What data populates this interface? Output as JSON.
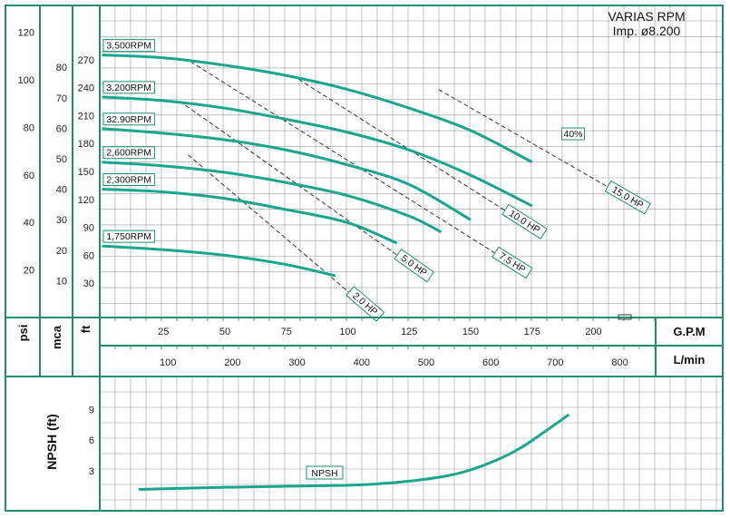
{
  "header": {
    "line1": "VARIAS RPM",
    "line2": "Imp. ø8.200"
  },
  "axes": {
    "psi_title": "psi",
    "mca_title": "mca",
    "ft_title": "ft",
    "gpm_title": "G.P.M",
    "lmin_title": "L/min",
    "npsh_title": "NPSH (ft)",
    "psi_ticks": [
      "20",
      "40",
      "60",
      "80",
      "100",
      "120"
    ],
    "mca_ticks": [
      "10",
      "20",
      "30",
      "40",
      "50",
      "60",
      "70",
      "80"
    ],
    "ft_ticks": [
      "30",
      "60",
      "90",
      "120",
      "150",
      "180",
      "210",
      "240",
      "270"
    ],
    "gpm_ticks": [
      "25",
      "50",
      "75",
      "100",
      "125",
      "150",
      "175",
      "200"
    ],
    "lmin_ticks": [
      "100",
      "200",
      "300",
      "400",
      "500",
      "600",
      "700",
      "800"
    ],
    "npsh_ticks": [
      "3",
      "6",
      "9"
    ]
  },
  "colors": {
    "curve": "#1aa58d",
    "frame": "#1d8f6f",
    "grid": "#9a9a9a",
    "power": "#333333"
  },
  "chart_data": [
    {
      "type": "line",
      "name": "head-capacity",
      "xlabel": "G.P.M",
      "ylabel": "ft",
      "xlim": [
        0,
        250
      ],
      "ylim": [
        0,
        300
      ],
      "series": [
        {
          "name": "3,500RPM",
          "x": [
            0,
            25,
            50,
            75,
            100,
            125,
            150,
            175
          ],
          "y": [
            275,
            272,
            264,
            253,
            238,
            218,
            194,
            160
          ]
        },
        {
          "name": "3,200RPM",
          "x": [
            0,
            25,
            50,
            75,
            100,
            125,
            150,
            175
          ],
          "y": [
            230,
            226,
            218,
            206,
            192,
            173,
            146,
            113
          ]
        },
        {
          "name": "32.90RPM",
          "x": [
            0,
            25,
            50,
            75,
            100,
            125,
            150
          ],
          "y": [
            196,
            191,
            184,
            173,
            157,
            136,
            98
          ]
        },
        {
          "name": "2,600RPM",
          "x": [
            0,
            25,
            50,
            75,
            100,
            125,
            138
          ],
          "y": [
            160,
            156,
            149,
            138,
            124,
            102,
            85
          ]
        },
        {
          "name": "2,300RPM",
          "x": [
            0,
            25,
            50,
            75,
            100,
            120
          ],
          "y": [
            131,
            128,
            121,
            109,
            95,
            73
          ]
        },
        {
          "name": "1,750RPM",
          "x": [
            0,
            25,
            50,
            75,
            95
          ],
          "y": [
            70,
            66,
            60,
            50,
            38
          ]
        }
      ],
      "power_lines": [
        {
          "label": "2.0 HP",
          "x": [
            35,
            105
          ],
          "y": [
            168,
            10
          ]
        },
        {
          "label": "5.0 HP",
          "x": [
            34,
            125
          ],
          "y": [
            221,
            51
          ]
        },
        {
          "label": "7.5 HP",
          "x": [
            36,
            165
          ],
          "y": [
            268,
            54
          ]
        },
        {
          "label": "10.0 HP",
          "x": [
            80,
            170
          ],
          "y": [
            249,
            98
          ]
        },
        {
          "label": "15.0 HP",
          "x": [
            137,
            212
          ],
          "y": [
            238,
            124
          ]
        }
      ],
      "efficiency_label": "40%"
    },
    {
      "type": "line",
      "name": "npsh",
      "ylabel": "NPSH (ft)",
      "xlim": [
        0,
        250
      ],
      "ylim": [
        0,
        12
      ],
      "series": [
        {
          "name": "NPSH",
          "x": [
            15,
            50,
            75,
            100,
            110,
            125,
            140,
            150,
            160,
            170,
            180,
            190
          ],
          "y": [
            1.2,
            1.4,
            1.5,
            1.6,
            1.7,
            2.0,
            2.5,
            3.1,
            4.0,
            5.2,
            6.8,
            8.5
          ]
        }
      ]
    }
  ]
}
